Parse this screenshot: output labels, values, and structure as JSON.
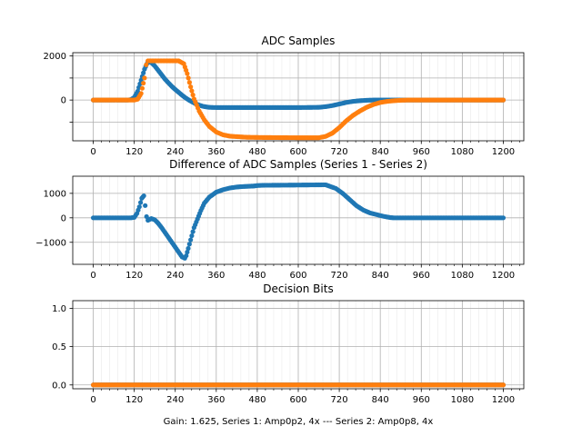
{
  "chart_data": [
    {
      "type": "scatter",
      "title": "ADC Samples",
      "xlim": [
        -60,
        1260
      ],
      "ylim": [
        -1850,
        2150
      ],
      "xticks": [
        0,
        120,
        240,
        360,
        480,
        600,
        720,
        840,
        960,
        1080,
        1200
      ],
      "yticks": [
        -1000,
        0,
        1000,
        2000
      ],
      "ytick_labels": [
        "",
        "0",
        "",
        "2000"
      ],
      "grid": true,
      "series": [
        {
          "color": "#1f77b4",
          "points": [
            [
              0,
              0
            ],
            [
              100,
              0
            ],
            [
              110,
              20
            ],
            [
              120,
              120
            ],
            [
              130,
              400
            ],
            [
              140,
              900
            ],
            [
              150,
              1400
            ],
            [
              160,
              1750
            ],
            [
              170,
              1700
            ],
            [
              180,
              1550
            ],
            [
              190,
              1350
            ],
            [
              200,
              1150
            ],
            [
              210,
              950
            ],
            [
              220,
              780
            ],
            [
              230,
              620
            ],
            [
              240,
              480
            ],
            [
              250,
              350
            ],
            [
              260,
              220
            ],
            [
              270,
              100
            ],
            [
              280,
              0
            ],
            [
              290,
              -90
            ],
            [
              300,
              -170
            ],
            [
              310,
              -230
            ],
            [
              320,
              -280
            ],
            [
              330,
              -310
            ],
            [
              340,
              -330
            ],
            [
              360,
              -340
            ],
            [
              400,
              -340
            ],
            [
              600,
              -340
            ],
            [
              660,
              -330
            ],
            [
              680,
              -300
            ],
            [
              700,
              -250
            ],
            [
              720,
              -180
            ],
            [
              740,
              -110
            ],
            [
              760,
              -60
            ],
            [
              780,
              -30
            ],
            [
              800,
              -10
            ],
            [
              820,
              0
            ],
            [
              840,
              0
            ],
            [
              1200,
              0
            ]
          ]
        },
        {
          "color": "#ff7f0e",
          "points": [
            [
              0,
              0
            ],
            [
              120,
              0
            ],
            [
              130,
              40
            ],
            [
              140,
              300
            ],
            [
              150,
              1000
            ],
            [
              155,
              1600
            ],
            [
              160,
              1780
            ],
            [
              200,
              1780
            ],
            [
              250,
              1780
            ],
            [
              265,
              1650
            ],
            [
              275,
              1200
            ],
            [
              285,
              600
            ],
            [
              295,
              50
            ],
            [
              310,
              -500
            ],
            [
              325,
              -900
            ],
            [
              340,
              -1200
            ],
            [
              360,
              -1450
            ],
            [
              380,
              -1580
            ],
            [
              400,
              -1640
            ],
            [
              420,
              -1660
            ],
            [
              450,
              -1690
            ],
            [
              500,
              -1700
            ],
            [
              600,
              -1710
            ],
            [
              660,
              -1710
            ],
            [
              680,
              -1650
            ],
            [
              700,
              -1500
            ],
            [
              720,
              -1250
            ],
            [
              740,
              -950
            ],
            [
              760,
              -700
            ],
            [
              780,
              -500
            ],
            [
              800,
              -330
            ],
            [
              820,
              -200
            ],
            [
              840,
              -110
            ],
            [
              860,
              -60
            ],
            [
              880,
              -30
            ],
            [
              900,
              -10
            ],
            [
              920,
              0
            ],
            [
              1200,
              0
            ]
          ]
        }
      ]
    },
    {
      "type": "scatter",
      "title": "Difference of ADC Samples (Series 1 - Series 2)",
      "xlim": [
        -60,
        1260
      ],
      "ylim": [
        -1900,
        1700
      ],
      "xticks": [
        0,
        120,
        240,
        360,
        480,
        600,
        720,
        840,
        960,
        1080,
        1200
      ],
      "yticks": [
        -1000,
        0,
        1000
      ],
      "ytick_labels": [
        "−1000",
        "0",
        "1000"
      ],
      "grid": true,
      "series": [
        {
          "color": "#1f77b4",
          "points": [
            [
              0,
              0
            ],
            [
              110,
              0
            ],
            [
              120,
              20
            ],
            [
              128,
              180
            ],
            [
              135,
              450
            ],
            [
              142,
              800
            ],
            [
              148,
              900
            ],
            [
              152,
              500
            ],
            [
              156,
              50
            ],
            [
              160,
              -100
            ],
            [
              170,
              -30
            ],
            [
              180,
              -80
            ],
            [
              190,
              -220
            ],
            [
              200,
              -400
            ],
            [
              210,
              -600
            ],
            [
              220,
              -800
            ],
            [
              230,
              -1000
            ],
            [
              240,
              -1200
            ],
            [
              250,
              -1400
            ],
            [
              260,
              -1600
            ],
            [
              268,
              -1650
            ],
            [
              272,
              -1550
            ],
            [
              278,
              -1250
            ],
            [
              285,
              -900
            ],
            [
              295,
              -400
            ],
            [
              305,
              -50
            ],
            [
              315,
              300
            ],
            [
              325,
              600
            ],
            [
              340,
              850
            ],
            [
              360,
              1050
            ],
            [
              380,
              1150
            ],
            [
              400,
              1220
            ],
            [
              420,
              1260
            ],
            [
              440,
              1280
            ],
            [
              470,
              1300
            ],
            [
              480,
              1320
            ],
            [
              500,
              1330
            ],
            [
              600,
              1340
            ],
            [
              680,
              1350
            ],
            [
              690,
              1300
            ],
            [
              710,
              1200
            ],
            [
              730,
              1000
            ],
            [
              750,
              750
            ],
            [
              770,
              500
            ],
            [
              790,
              320
            ],
            [
              810,
              200
            ],
            [
              830,
              130
            ],
            [
              850,
              60
            ],
            [
              870,
              10
            ],
            [
              880,
              0
            ],
            [
              1200,
              0
            ]
          ]
        }
      ]
    },
    {
      "type": "scatter",
      "title": "Decision Bits",
      "xlabel": "Gain: 1.625, Series 1: Amp0p2, 4x --- Series 2: Amp0p8, 4x",
      "xlim": [
        -60,
        1260
      ],
      "ylim": [
        -0.05,
        1.1
      ],
      "xticks": [
        0,
        120,
        240,
        360,
        480,
        600,
        720,
        840,
        960,
        1080,
        1200
      ],
      "yticks": [
        0,
        0.5,
        1
      ],
      "ytick_labels": [
        "0.0",
        "0.5",
        "1.0"
      ],
      "grid": true,
      "series": [
        {
          "color": "#1f77b4",
          "points": [
            [
              0,
              0
            ],
            [
              1200,
              0
            ]
          ]
        },
        {
          "color": "#ff7f0e",
          "points": [
            [
              0,
              0
            ],
            [
              1200,
              0
            ]
          ]
        }
      ]
    }
  ]
}
